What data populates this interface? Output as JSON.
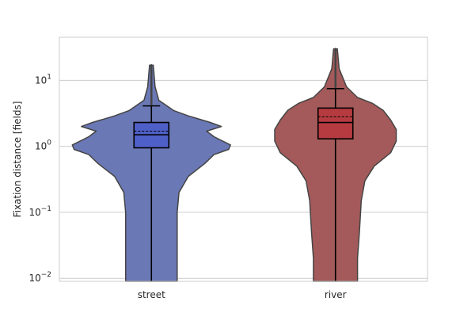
{
  "chart_data": {
    "type": "violin",
    "ylabel": "Fixation distance [fields]",
    "yscale": "log",
    "ylim": [
      0.009,
      45
    ],
    "y_ticks": [
      {
        "value": 0.01,
        "base": "10",
        "exp": "−2"
      },
      {
        "value": 0.1,
        "base": "10",
        "exp": "−1"
      },
      {
        "value": 1,
        "base": "10",
        "exp": "0"
      },
      {
        "value": 10,
        "base": "10",
        "exp": "1"
      }
    ],
    "grid": "horizontal",
    "categories": [
      "street",
      "river"
    ],
    "series": [
      {
        "category": "street",
        "color": "#6a78b5",
        "box_color": "#4f5fc8",
        "whisker_low": 0.009,
        "q1": 0.95,
        "median": 1.5,
        "mean": 1.7,
        "q3": 2.3,
        "whisker_high": 4.1,
        "max": 17,
        "density": [
          {
            "y": 17,
            "w": 0.01
          },
          {
            "y": 8,
            "w": 0.02
          },
          {
            "y": 5,
            "w": 0.04
          },
          {
            "y": 3.5,
            "w": 0.12
          },
          {
            "y": 2.9,
            "w": 0.2
          },
          {
            "y": 2.3,
            "w": 0.32
          },
          {
            "y": 2.0,
            "w": 0.38
          },
          {
            "y": 1.7,
            "w": 0.3
          },
          {
            "y": 1.4,
            "w": 0.34
          },
          {
            "y": 1.05,
            "w": 0.43
          },
          {
            "y": 0.9,
            "w": 0.42
          },
          {
            "y": 0.75,
            "w": 0.34
          },
          {
            "y": 0.55,
            "w": 0.29
          },
          {
            "y": 0.35,
            "w": 0.2
          },
          {
            "y": 0.2,
            "w": 0.15
          },
          {
            "y": 0.1,
            "w": 0.14
          },
          {
            "y": 0.03,
            "w": 0.14
          },
          {
            "y": 0.009,
            "w": 0.14
          }
        ]
      },
      {
        "category": "river",
        "color": "#a45a5a",
        "box_color": "#b53b40",
        "whisker_low": 0.009,
        "q1": 1.3,
        "median": 2.3,
        "mean": 2.8,
        "q3": 3.8,
        "whisker_high": 7.5,
        "max": 30,
        "density": [
          {
            "y": 30,
            "w": 0.01
          },
          {
            "y": 15,
            "w": 0.02
          },
          {
            "y": 8,
            "w": 0.06
          },
          {
            "y": 5.5,
            "w": 0.12
          },
          {
            "y": 4.5,
            "w": 0.2
          },
          {
            "y": 3.5,
            "w": 0.26
          },
          {
            "y": 2.5,
            "w": 0.3
          },
          {
            "y": 1.8,
            "w": 0.33
          },
          {
            "y": 1.2,
            "w": 0.33
          },
          {
            "y": 0.8,
            "w": 0.3
          },
          {
            "y": 0.5,
            "w": 0.21
          },
          {
            "y": 0.3,
            "w": 0.16
          },
          {
            "y": 0.15,
            "w": 0.14
          },
          {
            "y": 0.05,
            "w": 0.13
          },
          {
            "y": 0.02,
            "w": 0.12
          },
          {
            "y": 0.009,
            "w": 0.12
          }
        ]
      }
    ]
  }
}
